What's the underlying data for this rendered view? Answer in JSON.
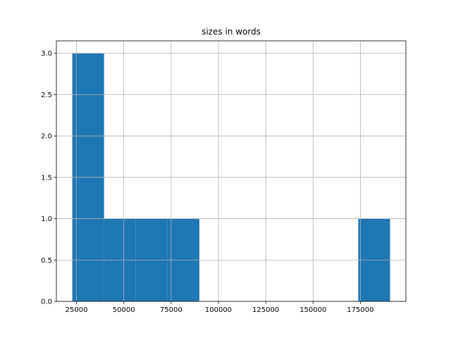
{
  "chart_data": {
    "type": "histogram",
    "title": "sizes in words",
    "bins": [
      22760,
      39551,
      56342,
      73133,
      89924,
      106715,
      123506,
      140297,
      157088,
      173879,
      190670
    ],
    "counts": [
      3,
      1,
      1,
      1,
      0,
      0,
      0,
      0,
      0,
      1
    ],
    "color": "#1f77b4",
    "xlim": [
      14364,
      199065
    ],
    "xticks": [
      25000,
      50000,
      75000,
      100000,
      125000,
      150000,
      175000
    ],
    "ylim": [
      0,
      3.15
    ],
    "yticks": [
      {
        "value": 0,
        "label": "0.0"
      },
      0.5,
      {
        "value": 1,
        "label": "1.0"
      },
      1.5,
      {
        "value": 2,
        "label": "2.0"
      },
      2.5,
      {
        "value": 3,
        "label": "3.0"
      }
    ],
    "grid": true
  }
}
